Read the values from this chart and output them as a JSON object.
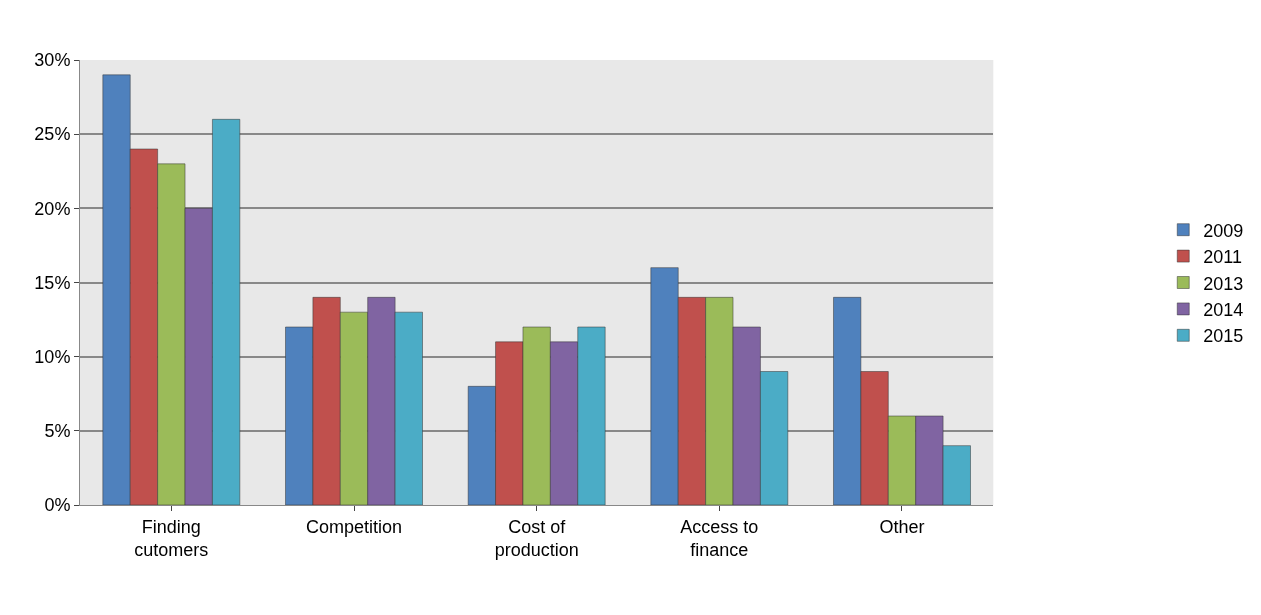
{
  "chart_data": {
    "type": "bar",
    "categories": [
      "Finding cutomers",
      "Competition",
      "Cost of production",
      "Access to finance",
      "Other"
    ],
    "series": [
      {
        "name": "2009",
        "color": "#4f81bd",
        "values": [
          29,
          12,
          8,
          16,
          14
        ]
      },
      {
        "name": "2011",
        "color": "#c0504d",
        "values": [
          24,
          14,
          11,
          14,
          9
        ]
      },
      {
        "name": "2013",
        "color": "#9bbb59",
        "values": [
          23,
          13,
          12,
          14,
          6
        ]
      },
      {
        "name": "2014",
        "color": "#8064a2",
        "values": [
          20,
          14,
          11,
          12,
          6
        ]
      },
      {
        "name": "2015",
        "color": "#4bacc6",
        "values": [
          26,
          13,
          12,
          9,
          4
        ]
      }
    ],
    "ylim": [
      0,
      30
    ],
    "yticks": [
      {
        "value": 0,
        "label": "0%"
      },
      {
        "value": 5,
        "label": "5%"
      },
      {
        "value": 10,
        "label": "10%"
      },
      {
        "value": 15,
        "label": "15%"
      },
      {
        "value": 20,
        "label": "20%"
      },
      {
        "value": 25,
        "label": "25%"
      },
      {
        "value": 30,
        "label": "30%"
      }
    ],
    "grid": "y",
    "legend": "right"
  }
}
